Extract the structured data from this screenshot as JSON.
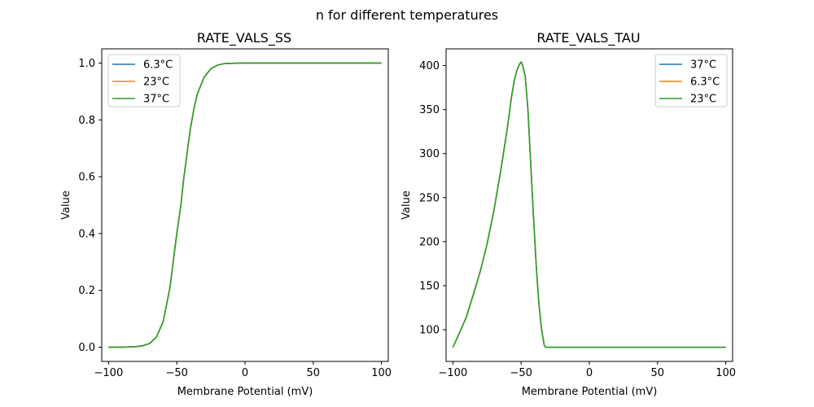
{
  "figure": {
    "suptitle": "n for different temperatures"
  },
  "chart_data": [
    {
      "type": "line",
      "title": "RATE_VALS_SS",
      "xlabel": "Membrane Potential (mV)",
      "ylabel": "Value",
      "xlim": [
        -105,
        105
      ],
      "ylim": [
        -0.05,
        1.05
      ],
      "xticks": [
        -100,
        -50,
        0,
        50,
        100
      ],
      "xtick_labels": [
        "−100",
        "−50",
        "0",
        "50",
        "100"
      ],
      "yticks": [
        0.0,
        0.2,
        0.4,
        0.6,
        0.8,
        1.0
      ],
      "ytick_labels": [
        "0.0",
        "0.2",
        "0.4",
        "0.6",
        "0.8",
        "1.0"
      ],
      "legend_position": "top-left",
      "x": [
        -100,
        -90,
        -80,
        -75,
        -70,
        -65,
        -60,
        -55,
        -50,
        -47,
        -45,
        -42,
        -40,
        -37,
        -35,
        -30,
        -25,
        -20,
        -15,
        -10,
        0,
        25,
        50,
        75,
        100
      ],
      "series": [
        {
          "name": "6.3°C",
          "color": "#1f77b4",
          "values": [
            0.0,
            0.0,
            0.002,
            0.005,
            0.013,
            0.035,
            0.09,
            0.21,
            0.4,
            0.5,
            0.59,
            0.7,
            0.77,
            0.85,
            0.89,
            0.95,
            0.98,
            0.993,
            0.998,
            0.999,
            1.0,
            1.0,
            1.0,
            1.0,
            1.0
          ]
        },
        {
          "name": "23°C",
          "color": "#ff7f0e",
          "values": [
            0.0,
            0.0,
            0.002,
            0.005,
            0.013,
            0.035,
            0.09,
            0.21,
            0.4,
            0.5,
            0.59,
            0.7,
            0.77,
            0.85,
            0.89,
            0.95,
            0.98,
            0.993,
            0.998,
            0.999,
            1.0,
            1.0,
            1.0,
            1.0,
            1.0
          ]
        },
        {
          "name": "37°C",
          "color": "#2ca02c",
          "values": [
            0.0,
            0.0,
            0.002,
            0.005,
            0.013,
            0.035,
            0.09,
            0.21,
            0.4,
            0.5,
            0.59,
            0.7,
            0.77,
            0.85,
            0.89,
            0.95,
            0.98,
            0.993,
            0.998,
            0.999,
            1.0,
            1.0,
            1.0,
            1.0,
            1.0
          ]
        }
      ]
    },
    {
      "type": "line",
      "title": "RATE_VALS_TAU",
      "xlabel": "Membrane Potential (mV)",
      "ylabel": "Value",
      "xlim": [
        -105,
        105
      ],
      "ylim": [
        64,
        419
      ],
      "xticks": [
        -100,
        -50,
        0,
        50,
        100
      ],
      "xtick_labels": [
        "−100",
        "−50",
        "0",
        "50",
        "100"
      ],
      "yticks": [
        100,
        150,
        200,
        250,
        300,
        350,
        400
      ],
      "ytick_labels": [
        "100",
        "150",
        "200",
        "250",
        "300",
        "350",
        "400"
      ],
      "legend_position": "top-right",
      "x": [
        -100,
        -95,
        -90,
        -85,
        -80,
        -75,
        -70,
        -65,
        -60,
        -57,
        -55,
        -53,
        -51,
        -50,
        -49,
        -47,
        -45,
        -43,
        -41,
        -39,
        -37,
        -35,
        -33,
        -32,
        -31,
        -30,
        0,
        50,
        100
      ],
      "series": [
        {
          "name": "37°C",
          "color": "#1f77b4",
          "values": [
            80,
            97,
            115,
            140,
            166,
            197,
            235,
            280,
            330,
            365,
            383,
            395,
            402,
            404,
            401,
            388,
            350,
            290,
            230,
            175,
            130,
            100,
            82,
            80,
            80,
            80,
            80,
            80,
            80
          ]
        },
        {
          "name": "6.3°C",
          "color": "#ff7f0e",
          "values": [
            80,
            97,
            115,
            140,
            166,
            197,
            235,
            280,
            330,
            365,
            383,
            395,
            402,
            404,
            401,
            388,
            350,
            290,
            230,
            175,
            130,
            100,
            82,
            80,
            80,
            80,
            80,
            80,
            80
          ]
        },
        {
          "name": "23°C",
          "color": "#2ca02c",
          "values": [
            80,
            97,
            115,
            140,
            166,
            197,
            235,
            280,
            330,
            365,
            383,
            395,
            402,
            404,
            401,
            388,
            350,
            290,
            230,
            175,
            130,
            100,
            82,
            80,
            80,
            80,
            80,
            80,
            80
          ]
        }
      ]
    }
  ]
}
